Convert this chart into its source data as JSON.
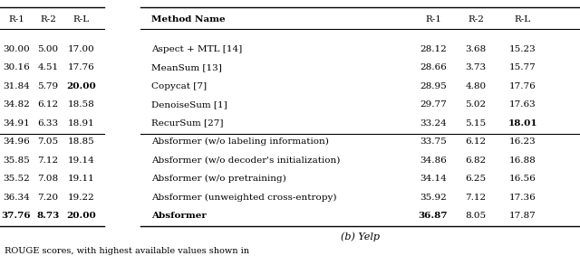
{
  "title": "(b) Yelp",
  "left_table": {
    "headers": [
      "R-1",
      "R-2",
      "R-L"
    ],
    "rows": [
      [
        "30.00",
        "5.00",
        "17.00"
      ],
      [
        "30.16",
        "4.51",
        "17.76"
      ],
      [
        "31.84",
        "5.79",
        "20.00"
      ],
      [
        "34.82",
        "6.12",
        "18.58"
      ],
      [
        "34.91",
        "6.33",
        "18.91"
      ],
      [
        "34.96",
        "7.05",
        "18.85"
      ],
      [
        "35.85",
        "7.12",
        "19.14"
      ],
      [
        "35.52",
        "7.08",
        "19.11"
      ],
      [
        "36.34",
        "7.20",
        "19.22"
      ],
      [
        "37.76",
        "8.73",
        "20.00"
      ]
    ],
    "bold": [
      [
        false,
        false,
        false
      ],
      [
        false,
        false,
        false
      ],
      [
        false,
        false,
        true
      ],
      [
        false,
        false,
        false
      ],
      [
        false,
        false,
        false
      ],
      [
        false,
        false,
        false
      ],
      [
        false,
        false,
        false
      ],
      [
        false,
        false,
        false
      ],
      [
        false,
        false,
        false
      ],
      [
        true,
        true,
        true
      ]
    ],
    "separator_after": [
      4
    ]
  },
  "right_table": {
    "headers": [
      "Method Name",
      "R-1",
      "R-2",
      "R-L"
    ],
    "rows": [
      [
        "Aspect + MTL [14]",
        "28.12",
        "3.68",
        "15.23"
      ],
      [
        "MeanSum [13]",
        "28.66",
        "3.73",
        "15.77"
      ],
      [
        "Copycat [7]",
        "28.95",
        "4.80",
        "17.76"
      ],
      [
        "DenoiseSum [1]",
        "29.77",
        "5.02",
        "17.63"
      ],
      [
        "RecurSum [27]",
        "33.24",
        "5.15",
        "18.01"
      ],
      [
        "Absformer (w/o labeling information)",
        "33.75",
        "6.12",
        "16.23"
      ],
      [
        "Absformer (w/o decoder's initialization)",
        "34.86",
        "6.82",
        "16.88"
      ],
      [
        "Absformer (w/o pretraining)",
        "34.14",
        "6.25",
        "16.56"
      ],
      [
        "Absformer (unweighted cross-entropy)",
        "35.92",
        "7.12",
        "17.36"
      ],
      [
        "Absformer",
        "36.87",
        "8.05",
        "17.87"
      ]
    ],
    "bold": [
      [
        false,
        false,
        false,
        false
      ],
      [
        false,
        false,
        false,
        false
      ],
      [
        false,
        false,
        false,
        false
      ],
      [
        false,
        false,
        false,
        false
      ],
      [
        false,
        false,
        false,
        true
      ],
      [
        false,
        false,
        false,
        false
      ],
      [
        false,
        false,
        false,
        false
      ],
      [
        false,
        false,
        false,
        false
      ],
      [
        false,
        false,
        false,
        false
      ],
      [
        true,
        true,
        false,
        false
      ]
    ],
    "separator_after": [
      4
    ]
  },
  "bg_color": "#ffffff",
  "font_size": 7.5,
  "header_font_size": 7.5,
  "caption_font_size": 8.0,
  "note_text": "ROUGE scores, with highest available values shown in"
}
